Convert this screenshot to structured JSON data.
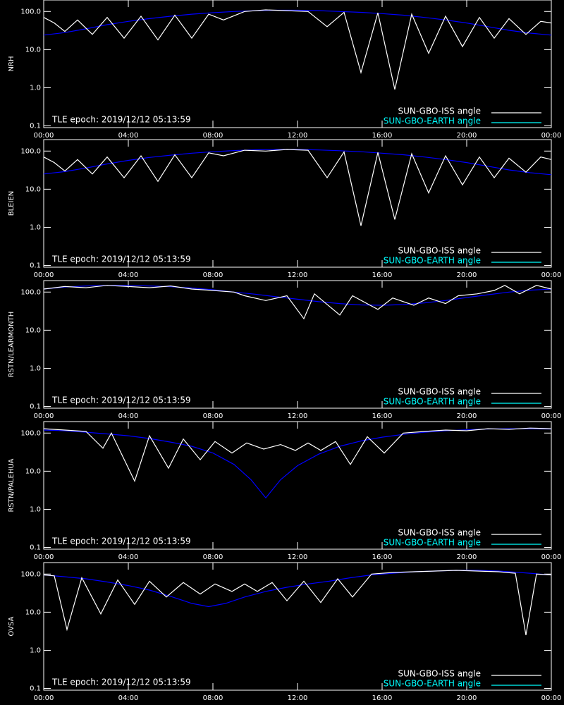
{
  "chart_data": [
    {
      "type": "line",
      "y_scale": "log",
      "ylabel": "NRH",
      "annotation": "TLE epoch: 2019/12/12 05:13:59",
      "legend": "lower right",
      "xlim": [
        0,
        24
      ],
      "ylim": [
        0.09,
        200
      ],
      "xticks": [
        {
          "value": 0,
          "label": "00:00"
        },
        {
          "value": 4,
          "label": "04:00"
        },
        {
          "value": 8,
          "label": "08:00"
        },
        {
          "value": 12,
          "label": "12:00"
        },
        {
          "value": 16,
          "label": "16:00"
        },
        {
          "value": 20,
          "label": "20:00"
        },
        {
          "value": 24,
          "label": "00:00"
        }
      ],
      "yticks": [
        0.1,
        {
          "value": 1,
          "label": "1.0"
        },
        {
          "value": 10,
          "label": "10.0"
        },
        {
          "value": 100,
          "label": "100.0"
        }
      ],
      "series": [
        {
          "name": "SUN-GBO-ISS angle",
          "color": "#ffffff",
          "legend_color": "#ffffff",
          "x": [
            0,
            0.5,
            1.0,
            1.6,
            2.3,
            3.0,
            3.8,
            4.6,
            5.4,
            6.2,
            7.0,
            7.8,
            8.5,
            9.5,
            10.5,
            11.5,
            12.5,
            13.4,
            14.2,
            15.0,
            15.8,
            16.6,
            17.4,
            18.2,
            19.0,
            19.8,
            20.6,
            21.3,
            22.0,
            22.8,
            23.5,
            24
          ],
          "values": [
            70,
            50,
            30,
            60,
            25,
            70,
            20,
            75,
            18,
            80,
            20,
            85,
            60,
            100,
            110,
            105,
            100,
            40,
            95,
            2.5,
            92,
            0.9,
            85,
            8,
            75,
            12,
            70,
            20,
            65,
            25,
            55,
            50
          ]
        },
        {
          "name": "SUN-GBO-EARTH angle",
          "color": "#0000ff",
          "legend_color": "#00ffff",
          "x": [
            0,
            1,
            2,
            3,
            4,
            5,
            6,
            7,
            8,
            9,
            10,
            11,
            12,
            13,
            14,
            15,
            16,
            17,
            18,
            19,
            20,
            21,
            22,
            23,
            24
          ],
          "values": [
            24,
            28,
            35,
            45,
            55,
            65,
            75,
            85,
            93,
            100,
            105,
            108,
            108,
            105,
            100,
            95,
            88,
            80,
            70,
            60,
            50,
            40,
            32,
            27,
            24
          ]
        }
      ]
    },
    {
      "type": "line",
      "y_scale": "log",
      "ylabel": "BLEIEN",
      "annotation": "TLE epoch: 2019/12/12 05:13:59",
      "legend": "lower right",
      "xlim": [
        0,
        24
      ],
      "ylim": [
        0.09,
        200
      ],
      "xticks": [
        {
          "value": 0,
          "label": "00:00"
        },
        {
          "value": 4,
          "label": "04:00"
        },
        {
          "value": 8,
          "label": "08:00"
        },
        {
          "value": 12,
          "label": "12:00"
        },
        {
          "value": 16,
          "label": "16:00"
        },
        {
          "value": 20,
          "label": "20:00"
        },
        {
          "value": 24,
          "label": "00:00"
        }
      ],
      "yticks": [
        0.1,
        {
          "value": 1,
          "label": "1.0"
        },
        {
          "value": 10,
          "label": "10.0"
        },
        {
          "value": 100,
          "label": "100.0"
        }
      ],
      "series": [
        {
          "name": "SUN-GBO-ISS angle",
          "color": "#ffffff",
          "legend_color": "#ffffff",
          "x": [
            0,
            0.5,
            1.0,
            1.6,
            2.3,
            3.0,
            3.8,
            4.6,
            5.4,
            6.2,
            7.0,
            7.8,
            8.5,
            9.5,
            10.5,
            11.5,
            12.5,
            13.4,
            14.2,
            15.0,
            15.8,
            16.6,
            17.4,
            18.2,
            19.0,
            19.8,
            20.6,
            21.3,
            22.0,
            22.8,
            23.5,
            24
          ],
          "values": [
            70,
            50,
            30,
            60,
            25,
            70,
            20,
            75,
            16,
            80,
            20,
            90,
            75,
            105,
            100,
            110,
            105,
            20,
            95,
            1.1,
            92,
            1.6,
            85,
            8,
            75,
            13,
            70,
            20,
            65,
            28,
            70,
            60
          ]
        },
        {
          "name": "SUN-GBO-EARTH angle",
          "color": "#0000ff",
          "legend_color": "#00ffff",
          "x": [
            0,
            1,
            2,
            3,
            4,
            5,
            6,
            7,
            8,
            9,
            10,
            11,
            12,
            13,
            14,
            15,
            16,
            17,
            18,
            19,
            20,
            21,
            22,
            23,
            24
          ],
          "values": [
            25,
            29,
            36,
            46,
            57,
            68,
            78,
            88,
            96,
            103,
            108,
            110,
            110,
            107,
            102,
            96,
            88,
            80,
            70,
            60,
            50,
            40,
            32,
            27,
            24
          ]
        }
      ]
    },
    {
      "type": "line",
      "y_scale": "log",
      "ylabel": "RSTN/LEARMONTH",
      "annotation": "TLE epoch: 2019/12/12 05:13:59",
      "legend": "lower right",
      "xlim": [
        0,
        24
      ],
      "ylim": [
        0.09,
        200
      ],
      "xticks": [
        {
          "value": 0,
          "label": "00:00"
        },
        {
          "value": 4,
          "label": "04:00"
        },
        {
          "value": 8,
          "label": "08:00"
        },
        {
          "value": 12,
          "label": "12:00"
        },
        {
          "value": 16,
          "label": "16:00"
        },
        {
          "value": 20,
          "label": "20:00"
        },
        {
          "value": 24,
          "label": "00:00"
        }
      ],
      "yticks": [
        0.1,
        {
          "value": 1,
          "label": "1.0"
        },
        {
          "value": 10,
          "label": "10.0"
        },
        {
          "value": 100,
          "label": "100.0"
        }
      ],
      "series": [
        {
          "name": "SUN-GBO-ISS angle",
          "color": "#ffffff",
          "legend_color": "#ffffff",
          "x": [
            0,
            1,
            2,
            3,
            4,
            5,
            6,
            7,
            8,
            9,
            9.5,
            10.5,
            11.5,
            12.3,
            12.8,
            14.0,
            14.6,
            15.8,
            16.5,
            17.5,
            18.2,
            19.0,
            19.6,
            20.5,
            21.3,
            21.8,
            22.5,
            23.3,
            24
          ],
          "values": [
            120,
            140,
            130,
            150,
            140,
            130,
            145,
            120,
            110,
            100,
            80,
            60,
            80,
            20,
            90,
            25,
            80,
            35,
            70,
            45,
            70,
            50,
            80,
            90,
            110,
            150,
            90,
            150,
            120
          ]
        },
        {
          "name": "SUN-GBO-EARTH angle",
          "color": "#0000ff",
          "legend_color": "#00ffff",
          "x": [
            0,
            1,
            2,
            3,
            4,
            5,
            6,
            7,
            8,
            9,
            10,
            11,
            12,
            13,
            14,
            15,
            16,
            17,
            18,
            19,
            20,
            21,
            22,
            23,
            24
          ],
          "values": [
            120,
            135,
            145,
            150,
            150,
            145,
            138,
            128,
            115,
            100,
            88,
            75,
            65,
            56,
            50,
            46,
            45,
            47,
            52,
            60,
            72,
            85,
            100,
            112,
            120
          ]
        }
      ]
    },
    {
      "type": "line",
      "y_scale": "log",
      "ylabel": "RSTN/PALEHUA",
      "annotation": "TLE epoch: 2019/12/12 05:13:59",
      "legend": "lower right",
      "xlim": [
        0,
        24
      ],
      "ylim": [
        0.09,
        200
      ],
      "xticks": [
        {
          "value": 0,
          "label": "00:00"
        },
        {
          "value": 4,
          "label": "04:00"
        },
        {
          "value": 8,
          "label": "08:00"
        },
        {
          "value": 12,
          "label": "12:00"
        },
        {
          "value": 16,
          "label": "16:00"
        },
        {
          "value": 20,
          "label": "20:00"
        },
        {
          "value": 24,
          "label": "00:00"
        }
      ],
      "yticks": [
        0.1,
        {
          "value": 1,
          "label": "1.0"
        },
        {
          "value": 10,
          "label": "10.0"
        },
        {
          "value": 100,
          "label": "100.0"
        }
      ],
      "series": [
        {
          "name": "SUN-GBO-ISS angle",
          "color": "#ffffff",
          "legend_color": "#ffffff",
          "x": [
            0,
            1,
            2,
            2.8,
            3.2,
            4.3,
            5.0,
            5.9,
            6.6,
            7.4,
            8.1,
            8.9,
            9.6,
            10.4,
            11.2,
            11.9,
            12.5,
            13.1,
            13.8,
            14.5,
            15.3,
            16.1,
            17,
            18,
            19,
            20,
            21,
            22,
            23,
            24
          ],
          "values": [
            130,
            120,
            110,
            40,
            100,
            5.5,
            85,
            12,
            70,
            20,
            60,
            30,
            55,
            38,
            50,
            35,
            55,
            35,
            60,
            15,
            80,
            30,
            100,
            110,
            120,
            115,
            130,
            125,
            135,
            130
          ]
        },
        {
          "name": "SUN-GBO-EARTH angle",
          "color": "#0000ff",
          "legend_color": "#00ffff",
          "x": [
            0,
            1,
            2,
            3,
            4,
            5,
            6,
            7,
            8,
            9,
            9.8,
            10.5,
            11.2,
            12,
            13,
            14,
            15,
            16,
            17,
            18,
            19,
            20,
            21,
            22,
            23,
            24
          ],
          "values": [
            120,
            115,
            105,
            95,
            85,
            72,
            58,
            45,
            30,
            15,
            6,
            2,
            6,
            14,
            28,
            45,
            62,
            78,
            92,
            105,
            115,
            122,
            128,
            130,
            130,
            128
          ]
        }
      ]
    },
    {
      "type": "line",
      "y_scale": "log",
      "ylabel": "OVSA",
      "annotation": "TLE epoch: 2019/12/12 05:13:59",
      "legend": "lower right",
      "xlim": [
        0,
        24
      ],
      "ylim": [
        0.09,
        200
      ],
      "xticks": [
        {
          "value": 0,
          "label": "00:00"
        },
        {
          "value": 4,
          "label": "04:00"
        },
        {
          "value": 8,
          "label": "08:00"
        },
        {
          "value": 12,
          "label": "12:00"
        },
        {
          "value": 16,
          "label": "16:00"
        },
        {
          "value": 20,
          "label": "20:00"
        },
        {
          "value": 24,
          "label": "00:00"
        }
      ],
      "yticks": [
        0.1,
        {
          "value": 1,
          "label": "1.0"
        },
        {
          "value": 10,
          "label": "10.0"
        },
        {
          "value": 100,
          "label": "100.0"
        }
      ],
      "series": [
        {
          "name": "SUN-GBO-ISS angle",
          "color": "#ffffff",
          "legend_color": "#ffffff",
          "x": [
            0,
            0.5,
            1.1,
            1.8,
            2.7,
            3.5,
            4.3,
            5.0,
            5.8,
            6.6,
            7.4,
            8.1,
            8.9,
            9.5,
            10.1,
            10.8,
            11.5,
            12.3,
            13.1,
            13.9,
            14.6,
            15.5,
            16.5,
            17.5,
            18.5,
            19.5,
            20.5,
            21.5,
            22.3,
            22.8,
            23.3,
            24
          ],
          "values": [
            95,
            90,
            3.5,
            80,
            9,
            70,
            16,
            65,
            25,
            60,
            30,
            55,
            35,
            55,
            35,
            60,
            20,
            65,
            18,
            75,
            25,
            100,
            110,
            115,
            120,
            125,
            120,
            115,
            105,
            2.5,
            100,
            95
          ]
        },
        {
          "name": "SUN-GBO-EARTH angle",
          "color": "#0000ff",
          "legend_color": "#00ffff",
          "x": [
            0,
            1,
            2,
            3,
            4,
            5,
            6,
            7,
            7.8,
            8.6,
            9.5,
            10.5,
            11.5,
            12.5,
            13.5,
            14.5,
            15.5,
            16.5,
            17.5,
            18.5,
            19.5,
            20.5,
            21.5,
            22.5,
            23.5,
            24
          ],
          "values": [
            95,
            85,
            75,
            62,
            50,
            38,
            26,
            17,
            14,
            17,
            25,
            35,
            45,
            55,
            65,
            80,
            95,
            105,
            115,
            120,
            125,
            125,
            120,
            110,
            100,
            95
          ]
        }
      ]
    }
  ]
}
